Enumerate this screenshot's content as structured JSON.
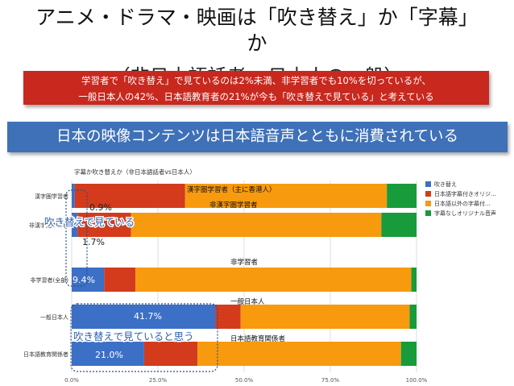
{
  "slide": {
    "title": "アニメ・ドラマ・映画は「吹き替え」か「字幕」\nか",
    "subtitle_partial": "（非日本語話者vs日本人の一般）",
    "red_box": {
      "line1": "学習者で「吹き替え」で見ているのは2%未満、非学習者でも10%を切っているが、",
      "line2": "一般日本人の42%、日本語教育者の21%が今も「吹き替えで見ている」と考えている"
    },
    "blue_box": "日本の映像コンテンツは日本語音声とともに消費されている"
  },
  "annotations": {
    "top_note": "吹き替えで見ている",
    "bottom_note": "吹き替えで見ていると思う"
  },
  "colors": {
    "dub": "#3c6fc6",
    "jp_subtitle": "#d33b1c",
    "other_subtitle": "#f79a0e",
    "no_subtitle": "#189b3a",
    "red_box": "#c8281e",
    "blue_box": "#3f71b8"
  },
  "chart_data": {
    "type": "bar",
    "orientation": "horizontal",
    "stacked": true,
    "percent": true,
    "title": "字幕か吹き替えか（非日本語話者vs日本人）",
    "categories": [
      "漢字圏学習者",
      "非漢字圏学習者",
      "非学習者(全部)",
      "一般日本人",
      "日本語教育関係者"
    ],
    "group_labels": [
      "漢字圏学習者（主に香港人）",
      "非漢字圏学習者",
      "非学習者",
      "一般日本人",
      "日本語教育関係者"
    ],
    "series": [
      {
        "name": "吹き替え",
        "color": "#3c6fc6",
        "values": [
          0.9,
          1.7,
          9.4,
          41.7,
          21.0
        ]
      },
      {
        "name": "日本語字幕付きオリジ...",
        "color": "#d33b1c",
        "values": [
          32.0,
          15.5,
          9.1,
          7.3,
          15.5
        ]
      },
      {
        "name": "日本語以外の字幕付...",
        "color": "#f79a0e",
        "values": [
          58.5,
          72.6,
          80.0,
          49.0,
          59.0
        ]
      },
      {
        "name": "字幕なしオリジナル音声",
        "color": "#189b3a",
        "values": [
          8.6,
          10.2,
          1.5,
          2.0,
          4.5
        ]
      }
    ],
    "data_labels": [
      "0.9%",
      "1.7%",
      "9.4%",
      "41.7%",
      "21.0%"
    ],
    "x_ticks": [
      "0.0%",
      "25.0%",
      "50.0%",
      "75.0%",
      "100.0%"
    ],
    "xlim": [
      0,
      100
    ],
    "grid": true,
    "legend": "right"
  }
}
